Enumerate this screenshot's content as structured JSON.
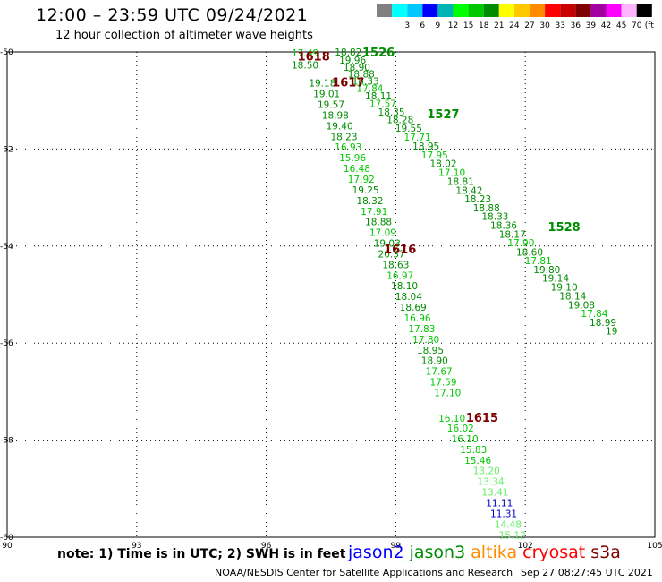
{
  "header": {
    "title": "12:00 – 23:59 UTC 09/24/2021",
    "subtitle": "12 hour collection of altimeter wave heights"
  },
  "colorbar": {
    "unit": "(ft)",
    "steps": [
      {
        "label": "",
        "color": "#808080"
      },
      {
        "label": "3",
        "color": "#00ffff"
      },
      {
        "label": "6",
        "color": "#00c8ff"
      },
      {
        "label": "9",
        "color": "#0000ff"
      },
      {
        "label": "12",
        "color": "#00b4b4"
      },
      {
        "label": "15",
        "color": "#00ff00"
      },
      {
        "label": "18",
        "color": "#00c800"
      },
      {
        "label": "21",
        "color": "#008c00"
      },
      {
        "label": "24",
        "color": "#ffff00"
      },
      {
        "label": "27",
        "color": "#ffc800"
      },
      {
        "label": "30",
        "color": "#ff8c00"
      },
      {
        "label": "33",
        "color": "#ff0000"
      },
      {
        "label": "36",
        "color": "#c80000"
      },
      {
        "label": "39",
        "color": "#800000"
      },
      {
        "label": "42",
        "color": "#a000a0"
      },
      {
        "label": "45",
        "color": "#ff00ff"
      },
      {
        "label": "70",
        "color": "#ffb4ff"
      },
      {
        "label": "",
        "color": "#000000"
      }
    ]
  },
  "chart_data": {
    "type": "scatter",
    "x_ticks": [
      "90",
      "93",
      "96",
      "99",
      "102",
      "105"
    ],
    "y_ticks": [
      "-50",
      "-52",
      "-54",
      "-56",
      "-58",
      "-60"
    ],
    "x_range": [
      90,
      105
    ],
    "y_range": [
      -60,
      -50
    ],
    "grid": true,
    "time_labels": [
      {
        "text": "1618",
        "lon": 97.1,
        "lat": -50.08,
        "color": "#800000"
      },
      {
        "text": "1526",
        "lon": 98.6,
        "lat": -50.0,
        "color": "#008c00"
      },
      {
        "text": "1617",
        "lon": 97.9,
        "lat": -50.62,
        "color": "#800000"
      },
      {
        "text": "1527",
        "lon": 100.1,
        "lat": -51.27,
        "color": "#008c00"
      },
      {
        "text": "1528",
        "lon": 102.9,
        "lat": -53.6,
        "color": "#008c00"
      },
      {
        "text": "1616",
        "lon": 99.1,
        "lat": -54.06,
        "color": "#800000"
      },
      {
        "text": "1615",
        "lon": 101.0,
        "lat": -57.53,
        "color": "#800000"
      }
    ],
    "tracks": [
      {
        "color": "#008c00",
        "points": [
          {
            "lon": 96.9,
            "lat": -50.02,
            "value": "17.49",
            "color": "#00c800"
          },
          {
            "lon": 96.9,
            "lat": -50.27,
            "value": "18.50",
            "color": "#008c00"
          },
          {
            "lon": 97.3,
            "lat": -50.64,
            "value": "19.18",
            "color": "#008c00"
          },
          {
            "lon": 97.4,
            "lat": -50.86,
            "value": "19.01",
            "color": "#008c00"
          },
          {
            "lon": 97.5,
            "lat": -51.08,
            "value": "19.57",
            "color": "#008c00"
          },
          {
            "lon": 97.6,
            "lat": -51.3,
            "value": "18.98",
            "color": "#008c00"
          },
          {
            "lon": 97.7,
            "lat": -51.52,
            "value": "19.40",
            "color": "#008c00"
          },
          {
            "lon": 97.8,
            "lat": -51.74,
            "value": "18.23",
            "color": "#008c00"
          },
          {
            "lon": 97.9,
            "lat": -51.96,
            "value": "16.93",
            "color": "#00c800"
          },
          {
            "lon": 98.0,
            "lat": -52.18,
            "value": "15.96",
            "color": "#00c800"
          },
          {
            "lon": 98.1,
            "lat": -52.4,
            "value": "16.48",
            "color": "#00c800"
          },
          {
            "lon": 98.2,
            "lat": -52.62,
            "value": "17.92",
            "color": "#00c800"
          },
          {
            "lon": 98.3,
            "lat": -52.84,
            "value": "19.25",
            "color": "#008c00"
          },
          {
            "lon": 98.4,
            "lat": -53.06,
            "value": "18.32",
            "color": "#008c00"
          },
          {
            "lon": 98.5,
            "lat": -53.28,
            "value": "17.91",
            "color": "#00c800"
          },
          {
            "lon": 98.6,
            "lat": -53.5,
            "value": "18.88",
            "color": "#008c00"
          },
          {
            "lon": 98.7,
            "lat": -53.72,
            "value": "17.09",
            "color": "#00c800"
          },
          {
            "lon": 98.8,
            "lat": -53.94,
            "value": "19.03",
            "color": "#008c00"
          },
          {
            "lon": 98.9,
            "lat": -54.16,
            "value": "20.37",
            "color": "#008c00"
          },
          {
            "lon": 99.0,
            "lat": -54.38,
            "value": "18.63",
            "color": "#008c00"
          },
          {
            "lon": 99.1,
            "lat": -54.6,
            "value": "16.97",
            "color": "#00c800"
          },
          {
            "lon": 99.2,
            "lat": -54.82,
            "value": "18.10",
            "color": "#008c00"
          },
          {
            "lon": 99.3,
            "lat": -55.04,
            "value": "18.04",
            "color": "#008c00"
          },
          {
            "lon": 99.4,
            "lat": -55.26,
            "value": "18.69",
            "color": "#008c00"
          },
          {
            "lon": 99.5,
            "lat": -55.48,
            "value": "16.96",
            "color": "#00c800"
          },
          {
            "lon": 99.6,
            "lat": -55.7,
            "value": "17.83",
            "color": "#00c800"
          },
          {
            "lon": 99.7,
            "lat": -55.92,
            "value": "17.80",
            "color": "#00c800"
          },
          {
            "lon": 99.8,
            "lat": -56.14,
            "value": "18.95",
            "color": "#008c00"
          },
          {
            "lon": 99.9,
            "lat": -56.36,
            "value": "18.90",
            "color": "#008c00"
          },
          {
            "lon": 100.0,
            "lat": -56.58,
            "value": "17.67",
            "color": "#00c800"
          },
          {
            "lon": 100.1,
            "lat": -56.8,
            "value": "17.59",
            "color": "#00c800"
          },
          {
            "lon": 100.2,
            "lat": -57.02,
            "value": "17.10",
            "color": "#00c800"
          },
          {
            "lon": 100.3,
            "lat": -57.55,
            "value": "16.10",
            "color": "#00c800"
          },
          {
            "lon": 100.5,
            "lat": -57.75,
            "value": "16.02",
            "color": "#00c800"
          },
          {
            "lon": 100.6,
            "lat": -57.97,
            "value": "16.10",
            "color": "#00c800"
          },
          {
            "lon": 100.8,
            "lat": -58.19,
            "value": "15.83",
            "color": "#00c800"
          },
          {
            "lon": 100.9,
            "lat": -58.41,
            "value": "15.46",
            "color": "#00c800"
          },
          {
            "lon": 101.1,
            "lat": -58.63,
            "value": "13.20",
            "color": "#66ee66"
          },
          {
            "lon": 101.2,
            "lat": -58.85,
            "value": "13.34",
            "color": "#66ee66"
          },
          {
            "lon": 101.3,
            "lat": -59.07,
            "value": "13.41",
            "color": "#66ee66"
          },
          {
            "lon": 101.4,
            "lat": -59.29,
            "value": "11.11",
            "color": "#0000c8"
          },
          {
            "lon": 101.5,
            "lat": -59.51,
            "value": "11.31",
            "color": "#0000c8"
          },
          {
            "lon": 101.6,
            "lat": -59.73,
            "value": "14.48",
            "color": "#66ee66"
          },
          {
            "lon": 101.7,
            "lat": -59.95,
            "value": "15.12",
            "color": "#66ee66"
          }
        ]
      },
      {
        "color": "#008c00",
        "points": [
          {
            "lon": 97.9,
            "lat": -50.0,
            "value": "18.82",
            "color": "#008c00"
          },
          {
            "lon": 98.0,
            "lat": -50.17,
            "value": "19.96",
            "color": "#008c00"
          },
          {
            "lon": 98.1,
            "lat": -50.31,
            "value": "18.90",
            "color": "#008c00"
          },
          {
            "lon": 98.2,
            "lat": -50.45,
            "value": "18.88",
            "color": "#008c00"
          },
          {
            "lon": 98.3,
            "lat": -50.6,
            "value": "18.33",
            "color": "#008c00"
          },
          {
            "lon": 98.4,
            "lat": -50.75,
            "value": "17.84",
            "color": "#00c800"
          },
          {
            "lon": 98.6,
            "lat": -50.9,
            "value": "18.11",
            "color": "#008c00"
          },
          {
            "lon": 98.7,
            "lat": -51.06,
            "value": "17.57",
            "color": "#00c800"
          },
          {
            "lon": 98.9,
            "lat": -51.24,
            "value": "18.35",
            "color": "#008c00"
          },
          {
            "lon": 99.1,
            "lat": -51.39,
            "value": "18.28",
            "color": "#008c00"
          },
          {
            "lon": 99.3,
            "lat": -51.57,
            "value": "19.55",
            "color": "#008c00"
          },
          {
            "lon": 99.5,
            "lat": -51.75,
            "value": "17.71",
            "color": "#00c800"
          },
          {
            "lon": 99.7,
            "lat": -51.94,
            "value": "18.95",
            "color": "#008c00"
          },
          {
            "lon": 99.9,
            "lat": -52.12,
            "value": "17.95",
            "color": "#00c800"
          },
          {
            "lon": 100.1,
            "lat": -52.3,
            "value": "18.02",
            "color": "#008c00"
          },
          {
            "lon": 100.3,
            "lat": -52.48,
            "value": "17.10",
            "color": "#00c800"
          },
          {
            "lon": 100.5,
            "lat": -52.67,
            "value": "18.81",
            "color": "#008c00"
          },
          {
            "lon": 100.7,
            "lat": -52.85,
            "value": "18.42",
            "color": "#008c00"
          },
          {
            "lon": 100.9,
            "lat": -53.03,
            "value": "18.23",
            "color": "#008c00"
          },
          {
            "lon": 101.1,
            "lat": -53.21,
            "value": "18.88",
            "color": "#008c00"
          },
          {
            "lon": 101.3,
            "lat": -53.39,
            "value": "18.33",
            "color": "#008c00"
          },
          {
            "lon": 101.5,
            "lat": -53.57,
            "value": "18.36",
            "color": "#008c00"
          },
          {
            "lon": 101.7,
            "lat": -53.75,
            "value": "18.17",
            "color": "#008c00"
          },
          {
            "lon": 101.9,
            "lat": -53.93,
            "value": "17.90",
            "color": "#00c800"
          },
          {
            "lon": 102.1,
            "lat": -54.12,
            "value": "18.60",
            "color": "#008c00"
          },
          {
            "lon": 102.3,
            "lat": -54.3,
            "value": "17.81",
            "color": "#00c800"
          },
          {
            "lon": 102.5,
            "lat": -54.48,
            "value": "19.80",
            "color": "#008c00"
          },
          {
            "lon": 102.7,
            "lat": -54.66,
            "value": "19.14",
            "color": "#008c00"
          },
          {
            "lon": 102.9,
            "lat": -54.84,
            "value": "19.10",
            "color": "#008c00"
          },
          {
            "lon": 103.1,
            "lat": -55.03,
            "value": "18.14",
            "color": "#008c00"
          },
          {
            "lon": 103.3,
            "lat": -55.21,
            "value": "19.08",
            "color": "#008c00"
          },
          {
            "lon": 103.6,
            "lat": -55.39,
            "value": "17.84",
            "color": "#00c800"
          },
          {
            "lon": 103.8,
            "lat": -55.57,
            "value": "18.99",
            "color": "#008c00"
          },
          {
            "lon": 104.0,
            "lat": -55.75,
            "value": "19",
            "color": "#008c00"
          }
        ]
      }
    ]
  },
  "footer": {
    "note": "note:  1)  Time is in UTC;  2)  SWH is in feet",
    "satellites": [
      {
        "name": "jason2",
        "color": "#0000ff"
      },
      {
        "name": "jason3",
        "color": "#008c00"
      },
      {
        "name": "altika",
        "color": "#ff8c00"
      },
      {
        "name": "cryosat",
        "color": "#ff0000"
      },
      {
        "name": "s3a",
        "color": "#800000"
      }
    ],
    "credit": "NOAA/NESDIS Center for Satellite Applications and Research",
    "timestamp": "Sep 27 08:27:45 UTC 2021"
  }
}
